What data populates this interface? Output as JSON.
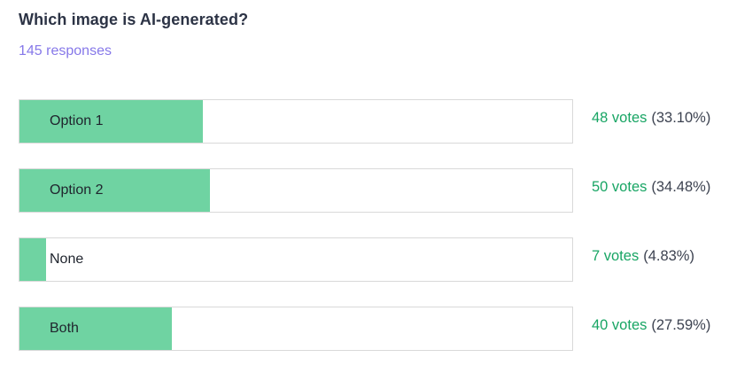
{
  "poll": {
    "title": "Which image is AI-generated?",
    "responses_label": "145 responses",
    "options": [
      {
        "label": "Option 1",
        "votes_label": "48 votes",
        "percent_label": "(33.10%)",
        "percent": 33.1
      },
      {
        "label": "Option 2",
        "votes_label": "50 votes",
        "percent_label": "(34.48%)",
        "percent": 34.48
      },
      {
        "label": "None",
        "votes_label": "7 votes",
        "percent_label": "(4.83%)",
        "percent": 4.83
      },
      {
        "label": "Both",
        "votes_label": "40 votes",
        "percent_label": "(27.59%)",
        "percent": 27.59
      }
    ],
    "colors": {
      "bar_fill": "#6fd3a2",
      "bar_border": "#d9d9d9",
      "votes_text": "#18a564",
      "percent_text": "#3c4250",
      "title_text": "#2c3345",
      "responses_text": "#8678e9"
    }
  },
  "chart_data": {
    "type": "bar",
    "orientation": "horizontal",
    "title": "Which image is AI-generated?",
    "subtitle": "145 responses",
    "categories": [
      "Option 1",
      "Option 2",
      "None",
      "Both"
    ],
    "values": [
      48,
      50,
      7,
      40
    ],
    "percentages": [
      33.1,
      34.48,
      4.83,
      27.59
    ],
    "total_responses": 145,
    "xlim": [
      0,
      100
    ],
    "grid": false,
    "legend": false
  }
}
